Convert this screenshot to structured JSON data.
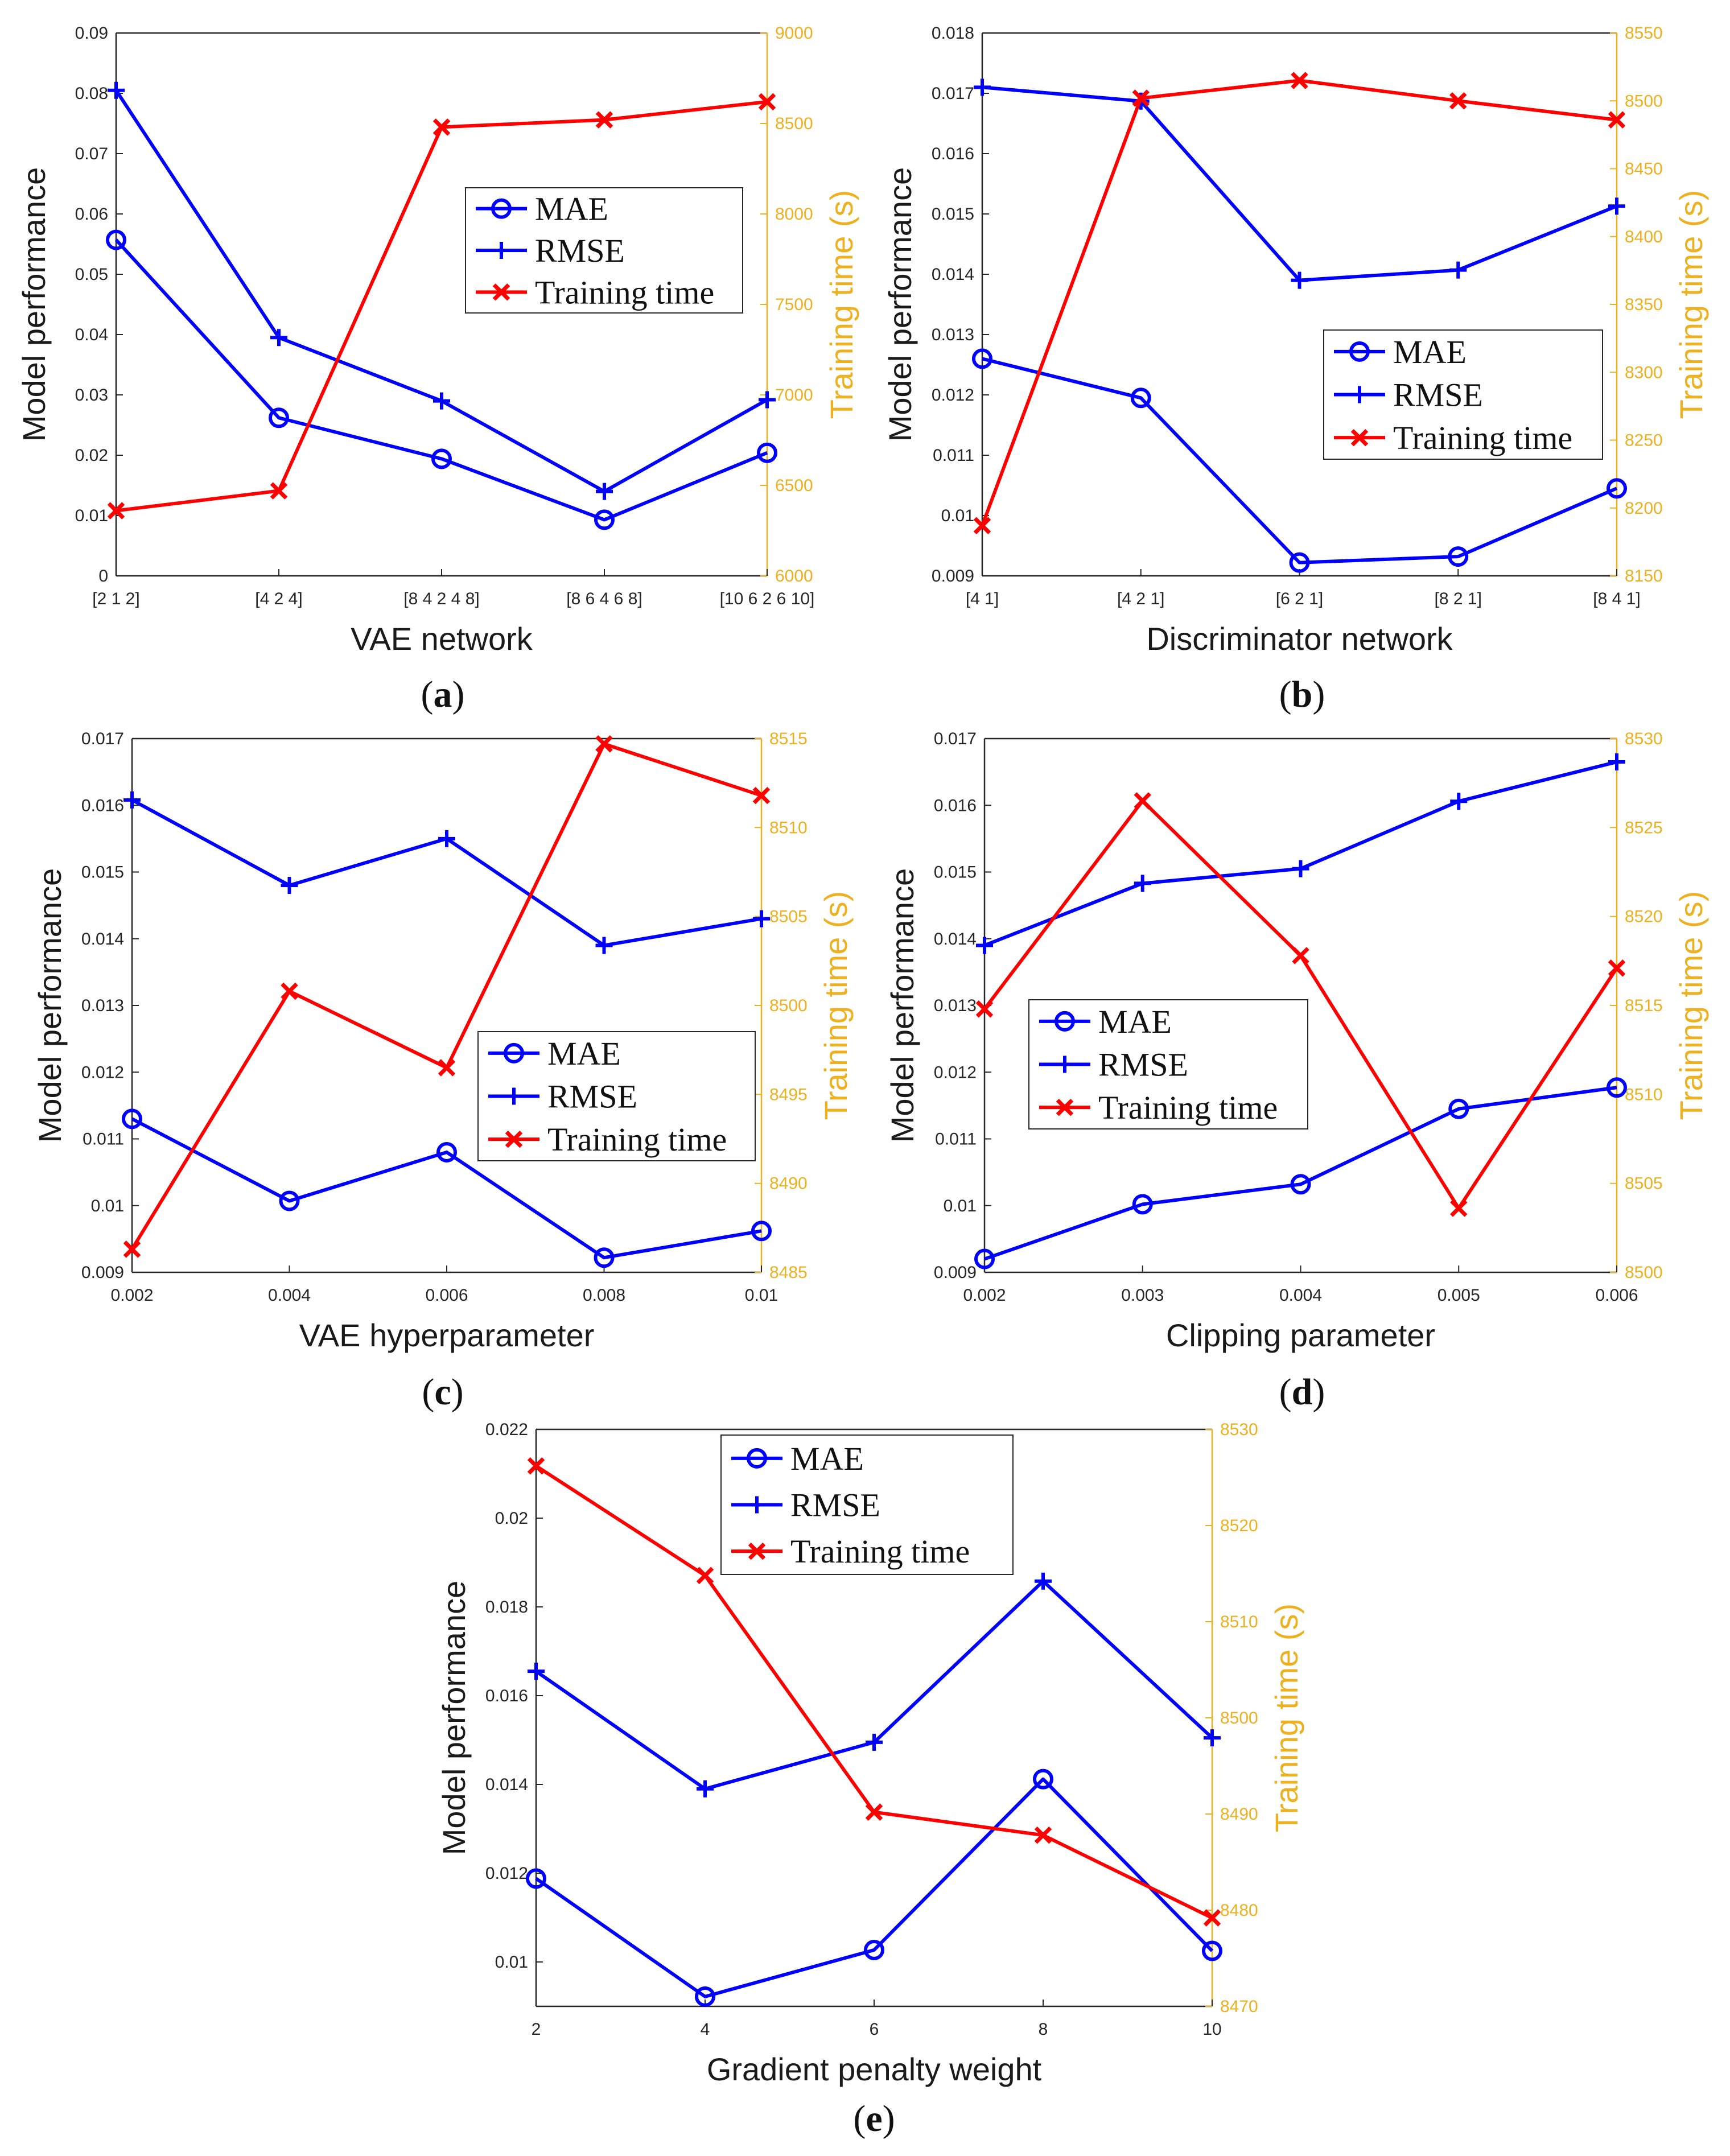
{
  "colors": {
    "mae": "#0000ff",
    "rmse": "#0000ff",
    "training_time": "#ff0000",
    "right_axis": "#edb120",
    "axis": "#262626"
  },
  "legend_labels": [
    "MAE",
    "RMSE",
    "Training time"
  ],
  "chart_data": [
    {
      "id": "a",
      "type": "line",
      "panel_label": {
        "open": "(",
        "letter": "a",
        "close": ")"
      },
      "xlabel": "VAE network",
      "ylabel": "Model performance",
      "y2label": "Training time (s)",
      "categories": [
        "[2 1 2]",
        "[4 2 4]",
        "[8 4 2 4 8]",
        "[8 6 4 6 8]",
        "[10 6 2 6 10]"
      ],
      "ylim": [
        0,
        0.09
      ],
      "yticks": [
        "0",
        "0.01",
        "0.02",
        "0.03",
        "0.04",
        "0.05",
        "0.06",
        "0.07",
        "0.08",
        "0.09"
      ],
      "y2lim": [
        6000,
        9000
      ],
      "y2ticks": [
        "6000",
        "6500",
        "7000",
        "7500",
        "8000",
        "8500",
        "9000"
      ],
      "legend_position": "upper-middle",
      "series": [
        {
          "name": "MAE",
          "axis": "left",
          "marker": "circle",
          "values": [
            0.0557,
            0.0262,
            0.0194,
            0.0093,
            0.0204
          ]
        },
        {
          "name": "RMSE",
          "axis": "left",
          "marker": "plus",
          "values": [
            0.0805,
            0.0395,
            0.029,
            0.014,
            0.0292
          ]
        },
        {
          "name": "Training time",
          "axis": "right",
          "marker": "x",
          "values": [
            6360,
            6470,
            8480,
            8520,
            8620
          ]
        }
      ]
    },
    {
      "id": "b",
      "type": "line",
      "panel_label": {
        "open": "(",
        "letter": "b",
        "close": ")"
      },
      "xlabel": "Discriminator network",
      "ylabel": "Model performance",
      "y2label": "Training time (s)",
      "categories": [
        "[4 1]",
        "[4 2 1]",
        "[6 2 1]",
        "[8 2 1]",
        "[8 4 1]"
      ],
      "ylim": [
        0.009,
        0.018
      ],
      "yticks": [
        "0.009",
        "0.01",
        "0.011",
        "0.012",
        "0.013",
        "0.014",
        "0.015",
        "0.016",
        "0.017",
        "0.018"
      ],
      "y2lim": [
        8150,
        8550
      ],
      "y2ticks": [
        "8150",
        "8200",
        "8250",
        "8300",
        "8350",
        "8400",
        "8450",
        "8500",
        "8550"
      ],
      "legend_position": "middle-right",
      "series": [
        {
          "name": "MAE",
          "axis": "left",
          "marker": "circle",
          "values": [
            0.0126,
            0.01195,
            0.00922,
            0.00932,
            0.01045
          ]
        },
        {
          "name": "RMSE",
          "axis": "left",
          "marker": "plus",
          "values": [
            0.0171,
            0.01687,
            0.0139,
            0.01407,
            0.01513
          ]
        },
        {
          "name": "Training time",
          "axis": "right",
          "marker": "x",
          "values": [
            8187,
            8502,
            8515,
            8500,
            8486
          ]
        }
      ]
    },
    {
      "id": "c",
      "type": "line",
      "panel_label": {
        "open": "(",
        "letter": "c",
        "close": ")"
      },
      "xlabel": "VAE hyperparameter",
      "ylabel": "Model performance",
      "y2label": "Training time (s)",
      "x": [
        0.002,
        0.004,
        0.006,
        0.008,
        0.01
      ],
      "xticks": [
        "0.002",
        "0.004",
        "0.006",
        "0.008",
        "0.01"
      ],
      "ylim": [
        0.009,
        0.017
      ],
      "yticks": [
        "0.009",
        "0.01",
        "0.011",
        "0.012",
        "0.013",
        "0.014",
        "0.015",
        "0.016",
        "0.017"
      ],
      "y2lim": [
        8485,
        8515
      ],
      "y2ticks": [
        "8485",
        "8490",
        "8495",
        "8500",
        "8505",
        "8510",
        "8515"
      ],
      "legend_position": "lower-right",
      "series": [
        {
          "name": "MAE",
          "axis": "left",
          "marker": "circle",
          "values": [
            0.0113,
            0.01007,
            0.0108,
            0.00922,
            0.00962
          ]
        },
        {
          "name": "RMSE",
          "axis": "left",
          "marker": "plus",
          "values": [
            0.01608,
            0.0148,
            0.0155,
            0.0139,
            0.0143
          ]
        },
        {
          "name": "Training time",
          "axis": "right",
          "marker": "x",
          "values": [
            8486.3,
            8500.8,
            8496.5,
            8514.7,
            8511.8
          ]
        }
      ]
    },
    {
      "id": "d",
      "type": "line",
      "panel_label": {
        "open": "(",
        "letter": "d",
        "close": ")"
      },
      "xlabel": "Clipping parameter",
      "ylabel": "Model performance",
      "y2label": "Training time (s)",
      "x": [
        0.002,
        0.003,
        0.004,
        0.005,
        0.006
      ],
      "xticks": [
        "0.002",
        "0.003",
        "0.004",
        "0.005",
        "0.006"
      ],
      "ylim": [
        0.009,
        0.017
      ],
      "yticks": [
        "0.009",
        "0.01",
        "0.011",
        "0.012",
        "0.013",
        "0.014",
        "0.015",
        "0.016",
        "0.017"
      ],
      "y2lim": [
        8500,
        8530
      ],
      "y2ticks": [
        "8500",
        "8505",
        "8510",
        "8515",
        "8520",
        "8525",
        "8530"
      ],
      "legend_position": "middle-left",
      "series": [
        {
          "name": "MAE",
          "axis": "left",
          "marker": "circle",
          "values": [
            0.0092,
            0.01002,
            0.01032,
            0.01145,
            0.01177
          ]
        },
        {
          "name": "RMSE",
          "axis": "left",
          "marker": "plus",
          "values": [
            0.0139,
            0.01483,
            0.01505,
            0.01606,
            0.01665
          ]
        },
        {
          "name": "Training time",
          "axis": "right",
          "marker": "x",
          "values": [
            8514.8,
            8526.5,
            8517.8,
            8503.6,
            8517.1
          ]
        }
      ]
    },
    {
      "id": "e",
      "type": "line",
      "panel_label": {
        "open": "(",
        "letter": "e",
        "close": ")"
      },
      "xlabel": "Gradient penalty weight",
      "ylabel": "Model performance",
      "y2label": "Training time (s)",
      "x": [
        2,
        4,
        6,
        8,
        10
      ],
      "xticks": [
        "2",
        "4",
        "6",
        "8",
        "10"
      ],
      "ylim": [
        0.009,
        0.022
      ],
      "yticks": [
        "0.01",
        "0.012",
        "0.014",
        "0.016",
        "0.018",
        "0.02",
        "0.022"
      ],
      "y2lim": [
        8470,
        8530
      ],
      "y2ticks": [
        "8470",
        "8480",
        "8490",
        "8500",
        "8510",
        "8520",
        "8530"
      ],
      "legend_position": "top-right",
      "series": [
        {
          "name": "MAE",
          "axis": "left",
          "marker": "circle",
          "values": [
            0.01188,
            0.00922,
            0.01027,
            0.01412,
            0.01025
          ]
        },
        {
          "name": "RMSE",
          "axis": "left",
          "marker": "plus",
          "values": [
            0.01655,
            0.0139,
            0.01495,
            0.01858,
            0.01505
          ]
        },
        {
          "name": "Training time",
          "axis": "right",
          "marker": "x",
          "values": [
            8526.2,
            8514.8,
            8490.2,
            8487.8,
            8479.2
          ]
        }
      ]
    }
  ]
}
